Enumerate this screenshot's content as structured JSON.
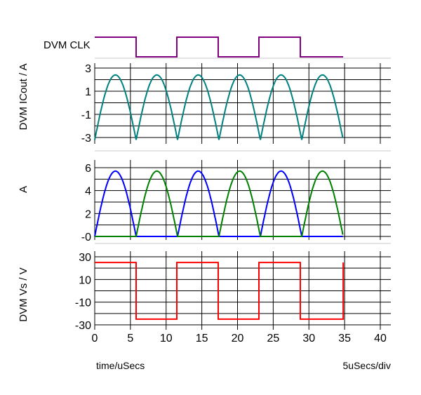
{
  "chart_data": [
    {
      "type": "line",
      "name": "clock",
      "ylabel": "DVM CLK",
      "xlim": [
        0,
        40
      ],
      "x": [
        0,
        5.8,
        5.8,
        11.5,
        11.5,
        17.3,
        17.3,
        23.0,
        23.0,
        28.8,
        28.8,
        34.8
      ],
      "series": [
        {
          "color": "#800080",
          "values": [
            1,
            1,
            0,
            0,
            1,
            1,
            0,
            0,
            1,
            1,
            0,
            0
          ]
        }
      ],
      "ylim": [
        0,
        1
      ]
    },
    {
      "type": "line",
      "name": "icout",
      "ylabel": "DVM ICout / A",
      "xlim": [
        0,
        40
      ],
      "ylim": [
        -3.5,
        3.5
      ],
      "yticks": [
        "3",
        "2",
        "1",
        "0",
        "-1",
        "-2",
        "-3"
      ],
      "yticks_shown": [
        "3",
        "1",
        "-1",
        "-3"
      ],
      "series": [
        {
          "color": "#008080",
          "shape": "alternating-half-sine",
          "x_start": 0,
          "x_end": 34.8,
          "half_period": 5.8,
          "amplitude": 5.6,
          "offset": -3.2
        }
      ]
    },
    {
      "type": "line",
      "name": "current",
      "ylabel": "A",
      "xlim": [
        0,
        40
      ],
      "ylim": [
        -0.6,
        6.6
      ],
      "yticks_shown": [
        "6",
        "4",
        "2",
        "-0"
      ],
      "series": [
        {
          "color": "#0000ff",
          "shape": "half-sine-on-odd",
          "x_start": 0,
          "x_end": 34.8,
          "half_period": 5.8,
          "amplitude": 5.7
        },
        {
          "color": "#008000",
          "shape": "half-sine-on-even",
          "x_start": 0,
          "x_end": 34.8,
          "half_period": 5.8,
          "amplitude": 5.7
        }
      ]
    },
    {
      "type": "line",
      "name": "voltage",
      "ylabel": "DVM Vs / V",
      "xlim": [
        0,
        40
      ],
      "ylim": [
        -32,
        32
      ],
      "yticks_shown": [
        "30",
        "10",
        "-10",
        "-30"
      ],
      "x": [
        0,
        5.8,
        5.8,
        11.5,
        11.5,
        17.3,
        17.3,
        23.0,
        23.0,
        28.8,
        28.8,
        34.8,
        34.8
      ],
      "series": [
        {
          "color": "#ff0000",
          "values": [
            25,
            25,
            -25,
            -25,
            25,
            25,
            -25,
            -25,
            25,
            25,
            -25,
            -25,
            25
          ]
        }
      ],
      "xticks": [
        "0",
        "5",
        "10",
        "15",
        "20",
        "25",
        "30",
        "35",
        "40"
      ]
    }
  ],
  "footer": {
    "xlabel": "time/uSecs",
    "scale": "5uSecs/div"
  }
}
